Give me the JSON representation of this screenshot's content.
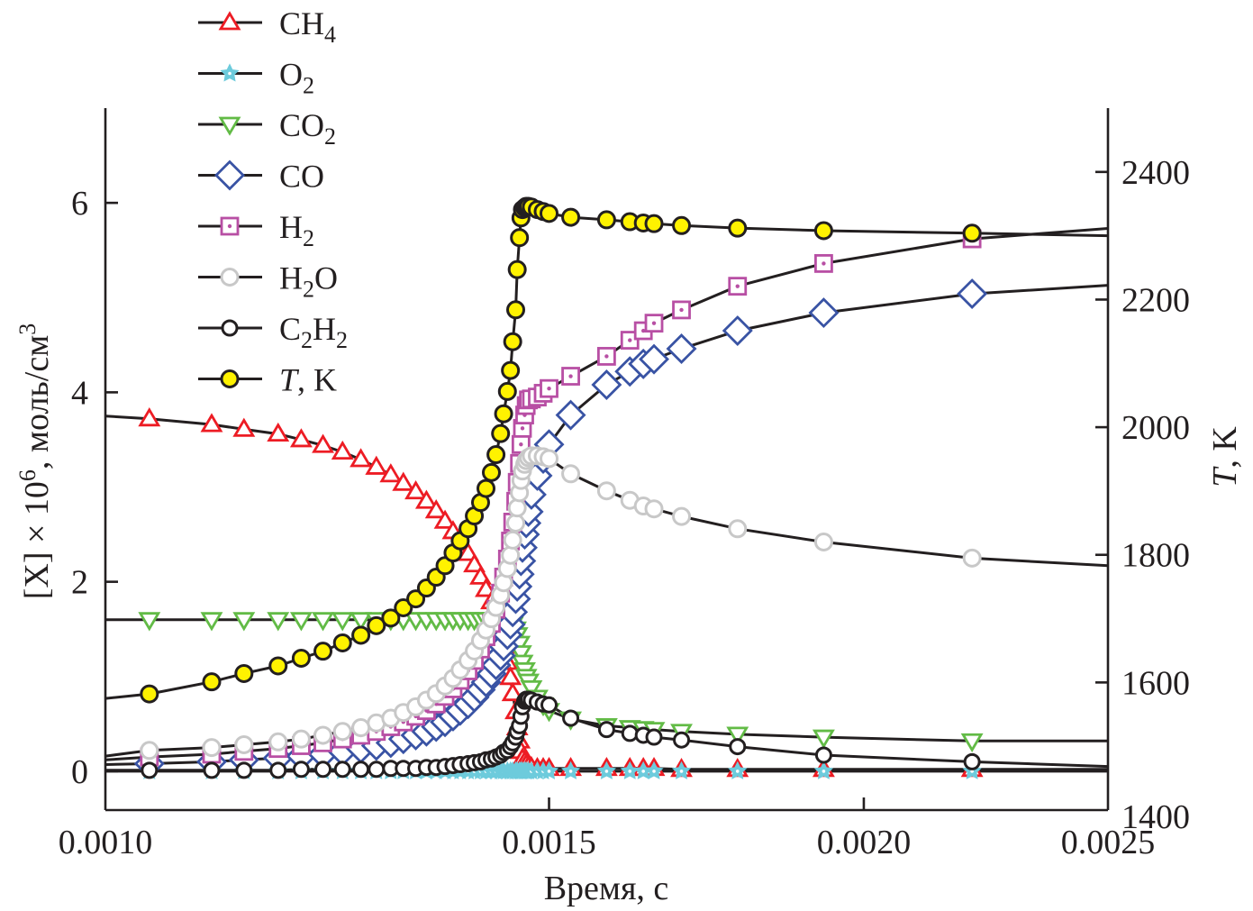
{
  "chart_data": {
    "type": "line",
    "title": "",
    "xlabel": "Время, с",
    "xscale": "log",
    "xlim": [
      0.001,
      0.0025
    ],
    "xticks": [
      0.001,
      0.0015,
      0.002,
      0.0025
    ],
    "xtick_labels": [
      "0.0010",
      "0.0015",
      "0.0020",
      "0.0025"
    ],
    "ylabel_left": {
      "main": "[X] × 10",
      "sup1": "6",
      "mid": ", моль/см",
      "sup2": "3"
    },
    "ylim_left": [
      -0.41,
      7.0
    ],
    "yticks_left": [
      0,
      2,
      4,
      6
    ],
    "ytick_labels_left": [
      "0",
      "2",
      "4",
      "6"
    ],
    "ylabel_right": {
      "italic": "T",
      "rest": ", K"
    },
    "ylim_right": [
      1400,
      2500
    ],
    "yticks_right": [
      1400,
      1600,
      1800,
      2000,
      2200,
      2400
    ],
    "ytick_labels_right": [
      "1400",
      "1600",
      "1800",
      "2000",
      "2200",
      "2400"
    ],
    "grid": false,
    "legend_position": "top-left (outside, above plot)",
    "x": [
      0.001041,
      0.001102,
      0.001135,
      0.001171,
      0.001196,
      0.00122,
      0.001242,
      0.001263,
      0.001281,
      0.001298,
      0.001313,
      0.001328,
      0.001341,
      0.001353,
      0.001364,
      0.001374,
      0.001383,
      0.001393,
      0.001401,
      0.001409,
      0.001416,
      0.001423,
      0.001429,
      0.001435,
      0.001439,
      0.001444,
      0.001448,
      0.001451,
      0.001455,
      0.001457,
      0.00146,
      0.001462,
      0.001464,
      0.001467,
      0.001469,
      0.001472,
      0.001476,
      0.001484,
      0.001492,
      0.0015,
      0.00153,
      0.001581,
      0.001615,
      0.001635,
      0.001651,
      0.001693,
      0.001782,
      0.001928,
      0.002208
    ],
    "series": [
      {
        "name": "CH4",
        "label_main": "CH",
        "label_sub": "4",
        "label_after": "",
        "axis": "left",
        "marker": "triangle-up",
        "color": "#ed1c24",
        "curve_start": 3.75,
        "curve_end": 0.02,
        "values": [
          3.72,
          3.66,
          3.61,
          3.56,
          3.5,
          3.44,
          3.37,
          3.29,
          3.21,
          3.13,
          3.04,
          2.95,
          2.85,
          2.75,
          2.64,
          2.53,
          2.41,
          2.3,
          2.18,
          2.05,
          1.92,
          1.79,
          1.63,
          1.48,
          1.32,
          1.15,
          0.99,
          0.82,
          0.63,
          0.46,
          0.32,
          0.21,
          0.13,
          0.1,
          0.07,
          0.05,
          0.04,
          0.03,
          0.03,
          0.03,
          0.03,
          0.03,
          0.03,
          0.03,
          0.03,
          0.02,
          0.02,
          0.02,
          0.02
        ]
      },
      {
        "name": "O2",
        "label_main": "O",
        "label_sub": "2",
        "label_after": "",
        "axis": "left",
        "marker": "star",
        "color": "#6dcbdc",
        "curve_start": 0.0,
        "curve_end": 0.0,
        "values": [
          0.0,
          0.0,
          0.0,
          0.0,
          0.0,
          0.0,
          0.0,
          0.0,
          0.0,
          0.0,
          0.0,
          0.0,
          0.0,
          0.0,
          0.0,
          0.0,
          0.0,
          0.0,
          0.0,
          0.0,
          0.0,
          0.0,
          0.0,
          0.0,
          0.0,
          0.0,
          0.0,
          0.0,
          0.0,
          0.0,
          0.0,
          0.0,
          0.0,
          0.0,
          0.0,
          0.0,
          0.0,
          0.0,
          0.0,
          0.0,
          0.0,
          0.0,
          0.0,
          0.0,
          0.0,
          0.0,
          0.0,
          0.0,
          0.0
        ]
      },
      {
        "name": "CO2",
        "label_main": "CO",
        "label_sub": "2",
        "label_after": "",
        "axis": "left",
        "marker": "triangle-down",
        "color": "#62bb46",
        "curve_start": 1.6,
        "curve_end": 0.32,
        "values": [
          1.6,
          1.6,
          1.6,
          1.6,
          1.6,
          1.6,
          1.6,
          1.6,
          1.6,
          1.6,
          1.6,
          1.6,
          1.6,
          1.6,
          1.6,
          1.6,
          1.6,
          1.6,
          1.6,
          1.6,
          1.6,
          1.6,
          1.6,
          1.6,
          1.6,
          1.59,
          1.58,
          1.55,
          1.5,
          1.44,
          1.35,
          1.25,
          1.15,
          1.07,
          1.0,
          0.95,
          0.88,
          0.78,
          0.7,
          0.64,
          0.55,
          0.48,
          0.46,
          0.45,
          0.44,
          0.42,
          0.39,
          0.36,
          0.32
        ]
      },
      {
        "name": "CO",
        "label_main": "CO",
        "label_sub": "",
        "label_after": "",
        "axis": "left",
        "marker": "diamond",
        "color": "#3953a4",
        "curve_start": 0.07,
        "curve_end": 5.13,
        "values": [
          0.08,
          0.1,
          0.12,
          0.14,
          0.16,
          0.18,
          0.21,
          0.24,
          0.27,
          0.3,
          0.34,
          0.38,
          0.42,
          0.47,
          0.52,
          0.58,
          0.64,
          0.71,
          0.78,
          0.86,
          0.94,
          1.03,
          1.12,
          1.22,
          1.32,
          1.44,
          1.55,
          1.68,
          1.82,
          1.95,
          2.08,
          2.22,
          2.36,
          2.5,
          2.62,
          2.74,
          2.92,
          3.12,
          3.3,
          3.45,
          3.76,
          4.08,
          4.22,
          4.3,
          4.35,
          4.46,
          4.65,
          4.84,
          5.04
        ]
      },
      {
        "name": "H2",
        "label_main": "H",
        "label_sub": "2",
        "label_after": "",
        "axis": "left",
        "marker": "square-dot",
        "color": "#b84fa4",
        "curve_start": 0.12,
        "curve_end": 5.73,
        "values": [
          0.15,
          0.18,
          0.21,
          0.24,
          0.27,
          0.3,
          0.34,
          0.38,
          0.42,
          0.47,
          0.52,
          0.58,
          0.64,
          0.71,
          0.79,
          0.87,
          0.96,
          1.06,
          1.17,
          1.29,
          1.42,
          1.56,
          1.71,
          1.88,
          2.05,
          2.24,
          2.43,
          2.63,
          2.85,
          3.05,
          3.25,
          3.45,
          3.62,
          3.76,
          3.86,
          3.92,
          3.93,
          3.95,
          3.99,
          4.04,
          4.17,
          4.38,
          4.55,
          4.65,
          4.73,
          4.87,
          5.12,
          5.36,
          5.62
        ]
      },
      {
        "name": "H2O",
        "label_main": "H",
        "label_sub": "2",
        "label_after": "O",
        "axis": "left",
        "marker": "circle-open",
        "color": "#c8c8c8",
        "curve_start": 0.16,
        "curve_end": 2.17,
        "values": [
          0.22,
          0.25,
          0.28,
          0.31,
          0.34,
          0.38,
          0.42,
          0.46,
          0.51,
          0.56,
          0.62,
          0.68,
          0.75,
          0.82,
          0.9,
          0.98,
          1.07,
          1.17,
          1.27,
          1.38,
          1.49,
          1.61,
          1.73,
          1.86,
          1.99,
          2.14,
          2.28,
          2.44,
          2.62,
          2.78,
          2.94,
          3.07,
          3.17,
          3.24,
          3.28,
          3.31,
          3.33,
          3.33,
          3.32,
          3.3,
          3.14,
          2.96,
          2.86,
          2.8,
          2.77,
          2.69,
          2.56,
          2.42,
          2.25
        ]
      },
      {
        "name": "C2H2",
        "label_main": "C",
        "label_sub": "2",
        "label_after": "H",
        "label_sub2": "2",
        "axis": "left",
        "marker": "circle-black",
        "color": "#231f20",
        "curve_start": 0.01,
        "curve_end": 0.05,
        "values": [
          0.01,
          0.01,
          0.01,
          0.01,
          0.02,
          0.02,
          0.02,
          0.02,
          0.02,
          0.03,
          0.03,
          0.03,
          0.04,
          0.04,
          0.05,
          0.06,
          0.07,
          0.08,
          0.09,
          0.1,
          0.12,
          0.13,
          0.15,
          0.17,
          0.2,
          0.22,
          0.26,
          0.3,
          0.36,
          0.42,
          0.48,
          0.58,
          0.68,
          0.74,
          0.76,
          0.76,
          0.75,
          0.73,
          0.71,
          0.7,
          0.56,
          0.44,
          0.4,
          0.38,
          0.36,
          0.33,
          0.26,
          0.17,
          0.1
        ]
      },
      {
        "name": "T, K",
        "label_main": "",
        "label_sub": "",
        "label_after": ", K",
        "label_italic": "T",
        "axis": "right",
        "marker": "circle-yellow",
        "color": "#fff200",
        "curve_start": 1575,
        "curve_end": 2300,
        "values": [
          1582,
          1601,
          1614,
          1626,
          1638,
          1649,
          1662,
          1674,
          1689,
          1701,
          1717,
          1731,
          1748,
          1765,
          1783,
          1803,
          1822,
          1841,
          1861,
          1882,
          1904,
          1929,
          1957,
          1990,
          2021,
          2056,
          2089,
          2134,
          2184,
          2247,
          2297,
          2328,
          2341,
          2344,
          2346,
          2346,
          2345,
          2341,
          2338,
          2335,
          2329,
          2325,
          2322,
          2320,
          2319,
          2316,
          2312,
          2308,
          2304
        ]
      }
    ]
  }
}
